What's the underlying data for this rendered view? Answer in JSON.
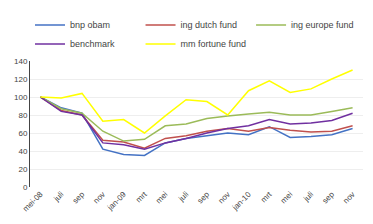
{
  "chart_data": {
    "type": "line",
    "categories": [
      "mei-08",
      "juli",
      "sep",
      "nov",
      "jan-09",
      "mrt",
      "mei",
      "juli",
      "sep",
      "nov",
      "jan-10",
      "mrt",
      "mei",
      "juli",
      "sep",
      "nov"
    ],
    "series": [
      {
        "name": "bnp obam",
        "color": "#4472c4",
        "values": [
          100,
          88,
          82,
          42,
          36,
          35,
          49,
          54,
          57,
          60,
          58,
          67,
          55,
          56,
          58,
          65
        ]
      },
      {
        "name": "ing dutch fund",
        "color": "#c0504d",
        "values": [
          100,
          85,
          80,
          52,
          50,
          43,
          54,
          57,
          62,
          65,
          62,
          66,
          63,
          61,
          62,
          68
        ]
      },
      {
        "name": "ing europe fund",
        "color": "#9bbb59",
        "values": [
          100,
          87,
          82,
          62,
          51,
          53,
          68,
          70,
          76,
          79,
          81,
          83,
          80,
          80,
          84,
          88
        ]
      },
      {
        "name": "benchmark",
        "color": "#7030a0",
        "values": [
          100,
          84,
          80,
          49,
          47,
          42,
          49,
          54,
          60,
          65,
          68,
          75,
          70,
          71,
          74,
          82
        ]
      },
      {
        "name": "mm fortune fund",
        "color": "#ffff00",
        "values": [
          100,
          99,
          104,
          73,
          75,
          60,
          79,
          97,
          95,
          80,
          107,
          118,
          105,
          109,
          120,
          130
        ]
      }
    ],
    "ylim": [
      0,
      140
    ],
    "yticks": [
      0,
      20,
      40,
      60,
      80,
      100,
      120,
      140
    ],
    "grid": true,
    "legend": "top"
  }
}
